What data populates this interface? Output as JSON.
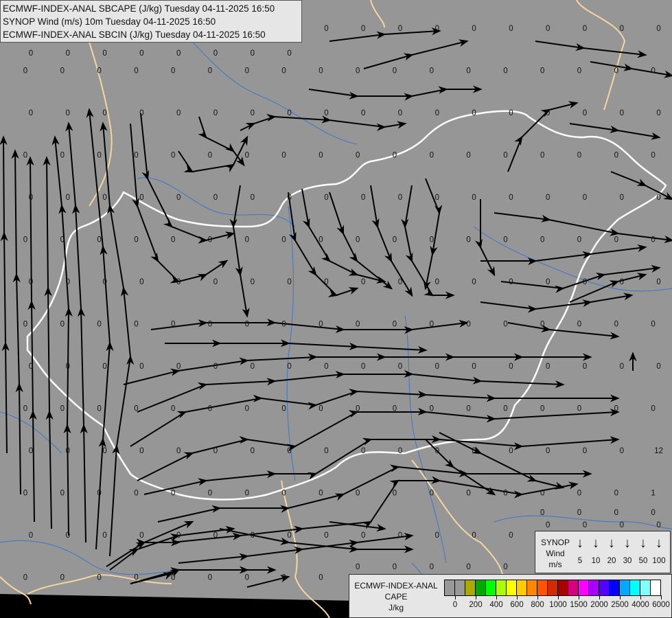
{
  "title_lines": [
    "ECMWF-INDEX-ANAL SBCAPE (J/kg) Tuesday 04-11-2025 16:50",
    "SYNOP Wind (m/s) 10m Tuesday 04-11-2025 16:50",
    "ECMWF-INDEX-ANAL SBCIN (J/kg) Tuesday 04-11-2025 16:50"
  ],
  "wind_legend": {
    "label_lines": [
      "SYNOP",
      "Wind",
      "m/s"
    ],
    "icon": "down-arrow-icon",
    "speeds": [
      "5",
      "10",
      "20",
      "30",
      "50",
      "100"
    ]
  },
  "cape_legend": {
    "label_lines": [
      "ECMWF-INDEX-ANAL",
      "CAPE",
      "J/kg"
    ],
    "colors": [
      "#999999",
      "#999999",
      "#aaaa00",
      "#00aa00",
      "#00ff00",
      "#aaff00",
      "#ffff00",
      "#ffcc00",
      "#ff8800",
      "#ff5500",
      "#d42a00",
      "#aa0000",
      "#d4007f",
      "#ff00ff",
      "#aa00ff",
      "#5500ff",
      "#0000ff",
      "#00aaff",
      "#00ffff",
      "#80ffff",
      "#ffffff"
    ],
    "tick_labels": [
      "0",
      "200",
      "400",
      "600",
      "800",
      "1000",
      "1500",
      "2000",
      "2500",
      "4000",
      "6000"
    ]
  },
  "map_colors": {
    "background": "#969696",
    "streamline": "#000000",
    "country_border": "#f5d6a0",
    "focus_border": "#ffffff",
    "river": "#3a78c8"
  },
  "sbcin_values": [
    [
      "0",
      "0",
      "0",
      "0",
      "0",
      "0",
      "0",
      "0",
      "0",
      "0",
      "0",
      "0",
      "0",
      "0",
      "0",
      "0",
      "0",
      "0"
    ],
    [
      "0",
      "0",
      "0",
      "0",
      "0",
      "0",
      "0",
      "0",
      "0",
      "0",
      "0",
      "0",
      "0",
      "0",
      "0",
      "0",
      "0",
      "0"
    ],
    [
      "0",
      "0",
      "0",
      "0",
      "0",
      "0",
      "0",
      "0",
      "0",
      "0",
      "0",
      "0",
      "0",
      "0",
      "0",
      "0",
      "0",
      "0"
    ],
    [
      "0",
      "0",
      "0",
      "0",
      "0",
      "0",
      "0",
      "0",
      "0",
      "0",
      "0",
      "0",
      "0",
      "0",
      "0",
      "0",
      "0",
      "0"
    ],
    [
      "0",
      "0",
      "0",
      "0",
      "0",
      "0",
      "0",
      "0",
      "0",
      "0",
      "0",
      "0",
      "0",
      "0",
      "0",
      "0",
      "0",
      "0"
    ],
    [
      "0",
      "0",
      "0",
      "0",
      "0",
      "0",
      "0",
      "0",
      "0",
      "0",
      "0",
      "0",
      "0",
      "0",
      "0",
      "0",
      "0",
      "0"
    ],
    [
      "0",
      "0",
      "0",
      "0",
      "0",
      "0",
      "0",
      "0",
      "0",
      "0",
      "0",
      "0",
      "0",
      "0",
      "0",
      "0",
      "0",
      "0"
    ],
    [
      "0",
      "0",
      "0",
      "0",
      "0",
      "0",
      "0",
      "0",
      "0",
      "0",
      "0",
      "0",
      "0",
      "0",
      "0",
      "0",
      "0",
      "0"
    ],
    [
      "0",
      "0",
      "0",
      "0",
      "0",
      "0",
      "0",
      "0",
      "0",
      "0",
      "0",
      "0",
      "0",
      "0",
      "0",
      "0",
      "0",
      "0"
    ],
    [
      "0",
      "0",
      "0",
      "0",
      "0",
      "0",
      "0",
      "0",
      "0",
      "0",
      "0",
      "0",
      "0",
      "0",
      "0",
      "0",
      "0",
      "0"
    ],
    [
      "0",
      "0",
      "0",
      "0",
      "0",
      "0",
      "0",
      "0",
      "0",
      "0",
      "0",
      "0",
      "0",
      "0",
      "0",
      "0",
      "0",
      "12"
    ],
    [
      "0",
      "0",
      "0",
      "0",
      "0",
      "0",
      "0",
      "0",
      "0",
      "0",
      "0",
      "0",
      "0",
      "0",
      "0",
      "0",
      "0",
      "1"
    ],
    [
      "0",
      "0",
      "0",
      "0",
      "0",
      "0",
      "0",
      "0",
      "0",
      "0",
      "0",
      "0",
      "0",
      "0",
      "0",
      "0",
      "0",
      "0"
    ],
    [
      "0",
      "0",
      "0",
      "0",
      "0",
      "0",
      "0",
      "0",
      "0",
      "0",
      "0",
      "0",
      "0",
      "0",
      "0",
      "0",
      "0",
      "0"
    ]
  ]
}
